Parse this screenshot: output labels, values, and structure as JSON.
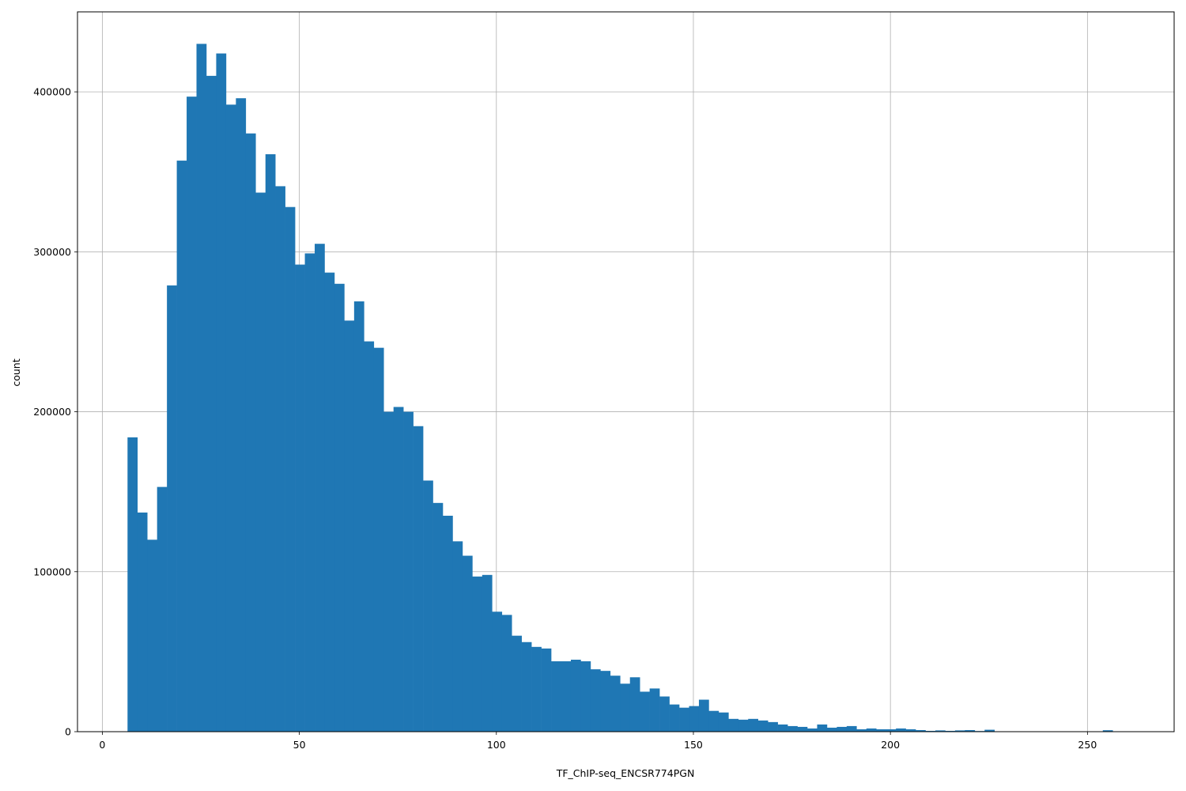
{
  "chart_data": {
    "type": "bar",
    "histogram": true,
    "xlabel": "TF_ChIP-seq_ENCSR774PGN",
    "ylabel": "count",
    "xlim": [
      -6.3,
      272
    ],
    "ylim": [
      0,
      450000
    ],
    "xticks": [
      0,
      50,
      100,
      150,
      200,
      250
    ],
    "xtick_labels": [
      "0",
      "50",
      "100",
      "150",
      "200",
      "250"
    ],
    "yticks": [
      0,
      100000,
      200000,
      300000,
      400000
    ],
    "ytick_labels": [
      "0",
      "100000",
      "200000",
      "300000",
      "400000"
    ],
    "grid": true,
    "bar_color": "#1f77b4",
    "bin_start": 6.4,
    "bin_width": 2.5,
    "values": [
      184000,
      137000,
      120000,
      153000,
      279000,
      357000,
      397000,
      430000,
      410000,
      424000,
      392000,
      396000,
      374000,
      337000,
      361000,
      341000,
      328000,
      292000,
      299000,
      305000,
      287000,
      280000,
      257000,
      269000,
      244000,
      240000,
      200000,
      203000,
      200000,
      191000,
      157000,
      143000,
      135000,
      119000,
      110000,
      97000,
      98000,
      75000,
      73000,
      60000,
      56000,
      53000,
      52000,
      44000,
      44000,
      45000,
      44000,
      39000,
      38000,
      35000,
      30000,
      34000,
      25000,
      27000,
      22000,
      17000,
      15000,
      16000,
      20000,
      13000,
      12000,
      8000,
      7500,
      8000,
      7000,
      6000,
      4500,
      3500,
      3000,
      2000,
      4500,
      2500,
      3000,
      3500,
      1500,
      2000,
      1500,
      1500,
      2000,
      1500,
      1000,
      500,
      800,
      500,
      800,
      1000,
      400,
      1200,
      200,
      100,
      100,
      100,
      100,
      100,
      100,
      100,
      100,
      100,
      100,
      900,
      200,
      100,
      100,
      100,
      100
    ]
  }
}
